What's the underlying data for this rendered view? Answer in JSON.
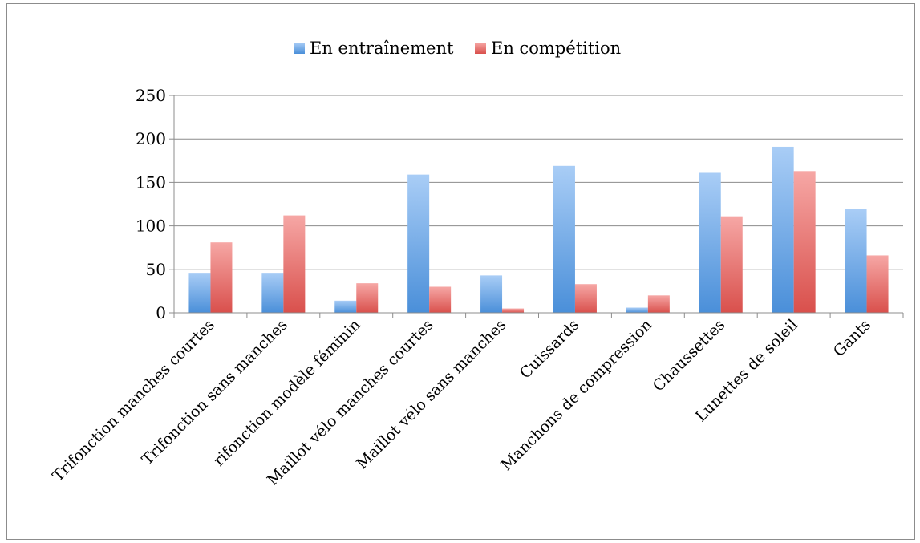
{
  "chart_data": {
    "type": "bar",
    "categories": [
      "Trifonction manches courtes",
      "Trifonction sans manches",
      "rifonction modèle féminin",
      "Maillot vélo manches courtes",
      "Maillot vélo sans manches",
      "Cuissards",
      "Manchons de compression",
      "Chaussettes",
      "Lunettes de soleil",
      "Gants"
    ],
    "series": [
      {
        "name": "En entraînement",
        "color": "#5b9bd5",
        "values": [
          46,
          46,
          14,
          159,
          43,
          169,
          6,
          161,
          191,
          119
        ]
      },
      {
        "name": "En compétition",
        "color": "#e0534f",
        "values": [
          81,
          112,
          34,
          30,
          5,
          33,
          20,
          111,
          163,
          66
        ]
      }
    ],
    "ylim": [
      0,
      250
    ],
    "yticks": [
      0,
      50,
      100,
      150,
      200,
      250
    ],
    "grid": true,
    "legend_position": "top"
  }
}
